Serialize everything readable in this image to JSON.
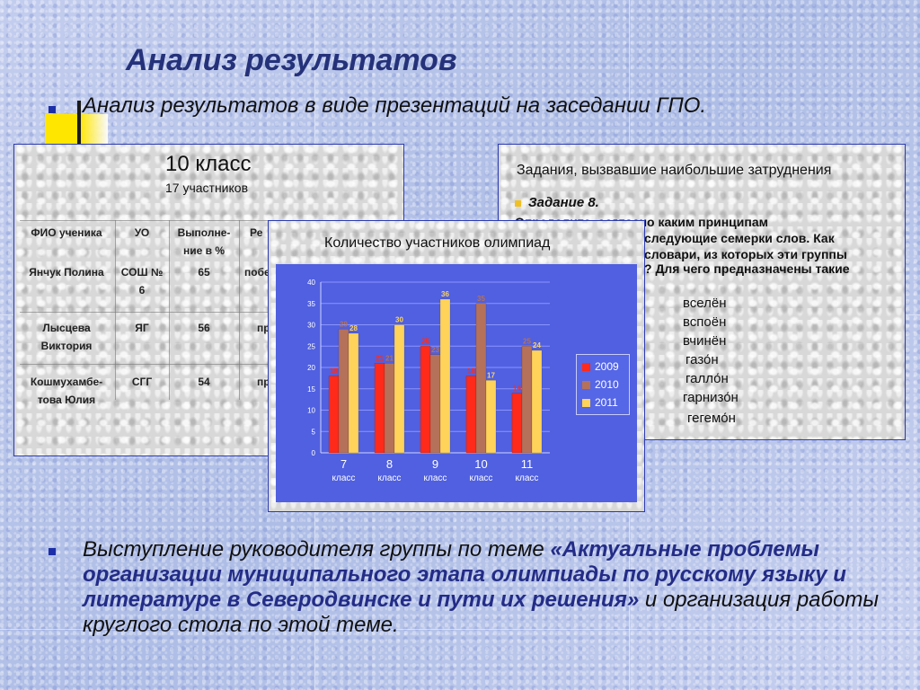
{
  "title": "Анализ результатов",
  "bullet1": "Анализ результатов в виде презентаций на заседании ГПО.",
  "table_slide": {
    "title": "10 класс",
    "subtitle": "17 участников",
    "headers": [
      "ФИО ученика",
      "УО",
      "Выполне-ние в %",
      "Ре"
    ],
    "rows": [
      [
        "Янчук Полина",
        "СОШ № 6",
        "65",
        "побе"
      ],
      [
        "Лысцева Виктория",
        "ЯГ",
        "56",
        "пр"
      ],
      [
        "Кошмухамбе-това Юлия",
        "СГГ",
        "54",
        "пр"
      ]
    ]
  },
  "task_slide": {
    "title": "Задания, вызвавшие наибольшие затруднения",
    "task_label": "Задание 8.",
    "lines": [
      "Определите, согласно каким принципам",
      "следующие семерки слов. Как",
      "словари, из которых эти группы",
      "? Для чего предназначены такие"
    ],
    "words": [
      "вселён",
      "вспоён",
      "вчинён",
      "газо́н",
      "галло́н",
      "гарнизо́н",
      "гегемо́н"
    ]
  },
  "chart_data": {
    "type": "bar",
    "title": "Количество участников олимпиад",
    "categories": [
      "7 класс",
      "8 класс",
      "9 класс",
      "10 класс",
      "11 класс"
    ],
    "ylim": [
      0,
      40
    ],
    "yticks": [
      0,
      5,
      10,
      15,
      20,
      25,
      30,
      35,
      40
    ],
    "grid": true,
    "legend_position": "right",
    "series": [
      {
        "name": "2009",
        "color": "#ff2a1a",
        "values": [
          18,
          21,
          25,
          18,
          14
        ]
      },
      {
        "name": "2010",
        "color": "#b5715a",
        "values": [
          29,
          21,
          23,
          35,
          25
        ]
      },
      {
        "name": "2011",
        "color": "#ffd35a",
        "values": [
          28,
          30,
          36,
          17,
          24
        ]
      }
    ],
    "background_color": "#5060e0"
  },
  "bullet2": {
    "prefix": "Выступление руководителя группы по теме ",
    "highlight": "«Актуальные проблемы организации муниципального этапа олимпиады по русскому языку и литературе в Северодвинске и пути их решения»",
    "suffix": " и организация работы круглого стола по этой теме."
  }
}
